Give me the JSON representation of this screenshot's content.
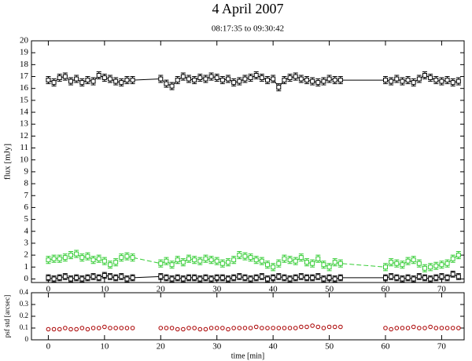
{
  "chart_data": [
    {
      "type": "line",
      "title": "4 April 2007",
      "subtitle": "08:17:35 to 09:30:42",
      "ylabel": "flux [mJy]",
      "xlim": [
        -3,
        74
      ],
      "xticks": [
        0,
        10,
        20,
        30,
        40,
        50,
        60,
        70
      ],
      "ylim": [
        -0.3,
        20
      ],
      "yticks": [
        0,
        1,
        2,
        3,
        4,
        5,
        6,
        7,
        8,
        9,
        10,
        11,
        12,
        13,
        14,
        15,
        16,
        17,
        18,
        19,
        20
      ],
      "grid": false,
      "x": [
        0,
        1,
        2,
        3,
        4,
        5,
        6,
        7,
        8,
        9,
        10,
        11,
        12,
        13,
        14,
        15,
        20,
        21,
        22,
        23,
        24,
        25,
        26,
        27,
        28,
        29,
        30,
        31,
        32,
        33,
        34,
        35,
        36,
        37,
        38,
        39,
        40,
        41,
        42,
        43,
        44,
        45,
        46,
        47,
        48,
        49,
        50,
        51,
        52,
        60,
        61,
        62,
        63,
        64,
        65,
        66,
        67,
        68,
        69,
        70,
        71,
        72,
        73
      ],
      "series": [
        {
          "color": "#000000",
          "linestyle": "solid",
          "marker": "square",
          "error": 0.3,
          "values": [
            16.7,
            16.5,
            16.9,
            17.0,
            16.6,
            16.8,
            16.5,
            16.7,
            16.6,
            17.1,
            16.9,
            16.8,
            16.6,
            16.5,
            16.7,
            16.7,
            16.8,
            16.4,
            16.2,
            16.7,
            17.0,
            16.8,
            16.7,
            16.9,
            16.8,
            17.0,
            16.9,
            16.7,
            16.8,
            16.5,
            16.6,
            16.8,
            16.9,
            17.1,
            16.9,
            16.7,
            16.8,
            16.1,
            16.7,
            16.9,
            17.0,
            16.8,
            16.7,
            16.6,
            16.5,
            16.6,
            16.8,
            16.7,
            16.7,
            16.7,
            16.6,
            16.8,
            16.6,
            16.7,
            16.5,
            16.8,
            17.1,
            16.9,
            16.7,
            16.6,
            16.7,
            16.5,
            16.6
          ]
        },
        {
          "color": "#33cc33",
          "linestyle": "dashed",
          "marker": "square",
          "error": 0.3,
          "values": [
            1.6,
            1.7,
            1.7,
            1.8,
            2.0,
            2.1,
            1.8,
            1.9,
            1.6,
            1.7,
            1.5,
            1.2,
            1.4,
            1.8,
            1.9,
            1.8,
            1.3,
            1.5,
            1.2,
            1.6,
            1.4,
            1.7,
            1.6,
            1.5,
            1.7,
            1.6,
            1.5,
            1.3,
            1.4,
            1.6,
            2.0,
            1.9,
            1.8,
            1.6,
            1.5,
            1.2,
            1.0,
            1.3,
            1.7,
            1.6,
            1.5,
            1.8,
            1.4,
            1.3,
            1.7,
            1.2,
            1.0,
            1.4,
            1.3,
            1.0,
            1.4,
            1.3,
            1.2,
            1.5,
            1.6,
            1.3,
            0.9,
            1.0,
            1.1,
            1.2,
            1.3,
            1.7,
            2.0
          ]
        },
        {
          "color": "#000000",
          "linestyle": "solid",
          "marker": "square",
          "error": 0.25,
          "values": [
            0.1,
            0.0,
            0.1,
            0.2,
            0.0,
            0.1,
            0.0,
            0.1,
            0.2,
            0.1,
            0.3,
            0.2,
            0.1,
            0.2,
            0.0,
            0.1,
            0.2,
            0.1,
            0.0,
            0.1,
            0.0,
            0.1,
            0.1,
            0.0,
            0.1,
            0.0,
            0.1,
            0.1,
            0.0,
            0.1,
            0.2,
            0.1,
            0.0,
            0.1,
            0.2,
            0.0,
            0.1,
            0.2,
            0.1,
            0.0,
            0.1,
            0.2,
            0.1,
            0.1,
            0.2,
            0.0,
            0.1,
            0.0,
            0.1,
            0.1,
            0.2,
            0.1,
            0.0,
            0.1,
            0.0,
            0.2,
            0.1,
            0.0,
            0.1,
            0.2,
            0.1,
            0.4,
            0.2
          ]
        }
      ]
    },
    {
      "type": "scatter",
      "ylabel": "psf std [arcsec]",
      "xlabel": "time [min]",
      "xlim": [
        -3,
        74
      ],
      "xticks": [
        0,
        10,
        20,
        30,
        40,
        50,
        60,
        70
      ],
      "ylim": [
        0,
        0.4
      ],
      "yticks": [
        0,
        0.1,
        0.2,
        0.3,
        0.4
      ],
      "grid": false,
      "x": [
        0,
        1,
        2,
        3,
        4,
        5,
        6,
        7,
        8,
        9,
        10,
        11,
        12,
        13,
        14,
        15,
        20,
        21,
        22,
        23,
        24,
        25,
        26,
        27,
        28,
        29,
        30,
        31,
        32,
        33,
        34,
        35,
        36,
        37,
        38,
        39,
        40,
        41,
        42,
        43,
        44,
        45,
        46,
        47,
        48,
        49,
        50,
        51,
        52,
        60,
        61,
        62,
        63,
        64,
        65,
        66,
        67,
        68,
        69,
        70,
        71,
        72,
        73
      ],
      "series": [
        {
          "color": "#aa0000",
          "marker": "circle",
          "values": [
            0.09,
            0.09,
            0.09,
            0.1,
            0.09,
            0.09,
            0.1,
            0.09,
            0.1,
            0.1,
            0.11,
            0.1,
            0.1,
            0.1,
            0.1,
            0.1,
            0.1,
            0.1,
            0.1,
            0.09,
            0.09,
            0.1,
            0.1,
            0.09,
            0.09,
            0.1,
            0.1,
            0.1,
            0.09,
            0.1,
            0.1,
            0.1,
            0.1,
            0.11,
            0.1,
            0.1,
            0.1,
            0.1,
            0.1,
            0.1,
            0.1,
            0.11,
            0.11,
            0.12,
            0.11,
            0.1,
            0.11,
            0.11,
            0.11,
            0.1,
            0.09,
            0.1,
            0.1,
            0.1,
            0.11,
            0.1,
            0.1,
            0.11,
            0.1,
            0.1,
            0.1,
            0.1,
            0.1
          ]
        }
      ]
    }
  ]
}
